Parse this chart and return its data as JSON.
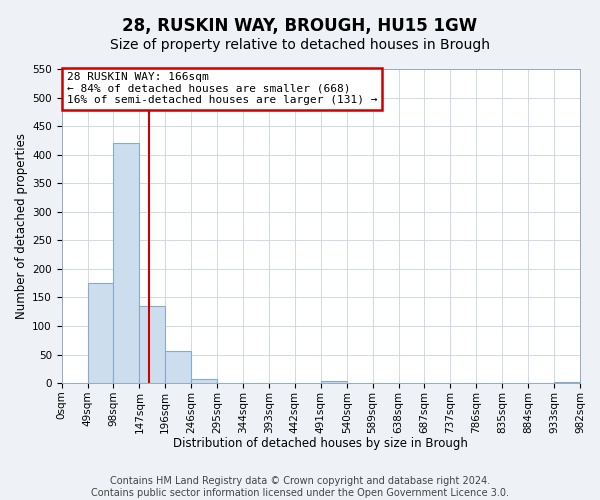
{
  "title": "28, RUSKIN WAY, BROUGH, HU15 1GW",
  "subtitle": "Size of property relative to detached houses in Brough",
  "xlabel": "Distribution of detached houses by size in Brough",
  "ylabel": "Number of detached properties",
  "bin_edges": [
    0,
    49,
    98,
    147,
    196,
    245,
    294,
    343,
    392,
    441,
    490,
    539,
    588,
    637,
    686,
    735,
    784,
    833,
    882,
    931,
    980
  ],
  "bin_labels": [
    "0sqm",
    "49sqm",
    "98sqm",
    "147sqm",
    "196sqm",
    "246sqm",
    "295sqm",
    "344sqm",
    "393sqm",
    "442sqm",
    "491sqm",
    "540sqm",
    "589sqm",
    "638sqm",
    "687sqm",
    "737sqm",
    "786sqm",
    "835sqm",
    "884sqm",
    "933sqm",
    "982sqm"
  ],
  "counts": [
    0,
    175,
    420,
    135,
    57,
    7,
    0,
    0,
    0,
    0,
    3,
    0,
    0,
    0,
    0,
    0,
    0,
    0,
    0,
    2
  ],
  "bar_color": "#ccdded",
  "bar_edge_color": "#88aacc",
  "property_line_x": 166,
  "property_line_color": "#cc0000",
  "annotation_line1": "28 RUSKIN WAY: 166sqm",
  "annotation_line2": "← 84% of detached houses are smaller (668)",
  "annotation_line3": "16% of semi-detached houses are larger (131) →",
  "annotation_box_color": "#ffffff",
  "annotation_box_edge_color": "#cc0000",
  "ylim": [
    0,
    550
  ],
  "yticks": [
    0,
    50,
    100,
    150,
    200,
    250,
    300,
    350,
    400,
    450,
    500,
    550
  ],
  "footer_line1": "Contains HM Land Registry data © Crown copyright and database right 2024.",
  "footer_line2": "Contains public sector information licensed under the Open Government Licence 3.0.",
  "background_color": "#eef2f6",
  "plot_background_color": "#ffffff",
  "grid_color": "#c8d4e0",
  "title_fontsize": 12,
  "subtitle_fontsize": 10,
  "axis_label_fontsize": 8.5,
  "tick_fontsize": 7.5,
  "annotation_fontsize": 8,
  "footer_fontsize": 7
}
